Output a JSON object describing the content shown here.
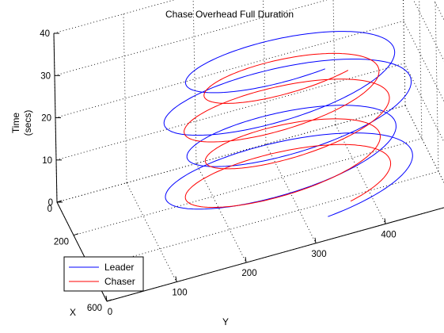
{
  "chart_data": {
    "type": "line",
    "title": "Chase Overhead Full Duration",
    "xlabel": "X",
    "ylabel": "Y",
    "zlabel": [
      "Time",
      "(secs)"
    ],
    "xlim": [
      0,
      600
    ],
    "ylim": [
      0,
      500
    ],
    "zlim": [
      0,
      40
    ],
    "x_ticks": [
      "0",
      "200",
      "400",
      "600"
    ],
    "y_ticks": [
      "0",
      "100",
      "200",
      "300",
      "400",
      "500"
    ],
    "z_ticks": [
      "0",
      "10",
      "20",
      "30",
      "40"
    ],
    "grid": true,
    "legend_position": "bottom-left",
    "series": [
      {
        "name": "Leader",
        "color": "#0000ff",
        "description_center_xy": [
          300,
          300
        ],
        "radius": 180,
        "turns": 4,
        "t_range": [
          0,
          35
        ]
      },
      {
        "name": "Chaser",
        "color": "#ff0000",
        "description_center_xy": [
          300,
          300
        ],
        "radius": 150,
        "turns": 4,
        "t_range": [
          0,
          31
        ]
      }
    ]
  }
}
